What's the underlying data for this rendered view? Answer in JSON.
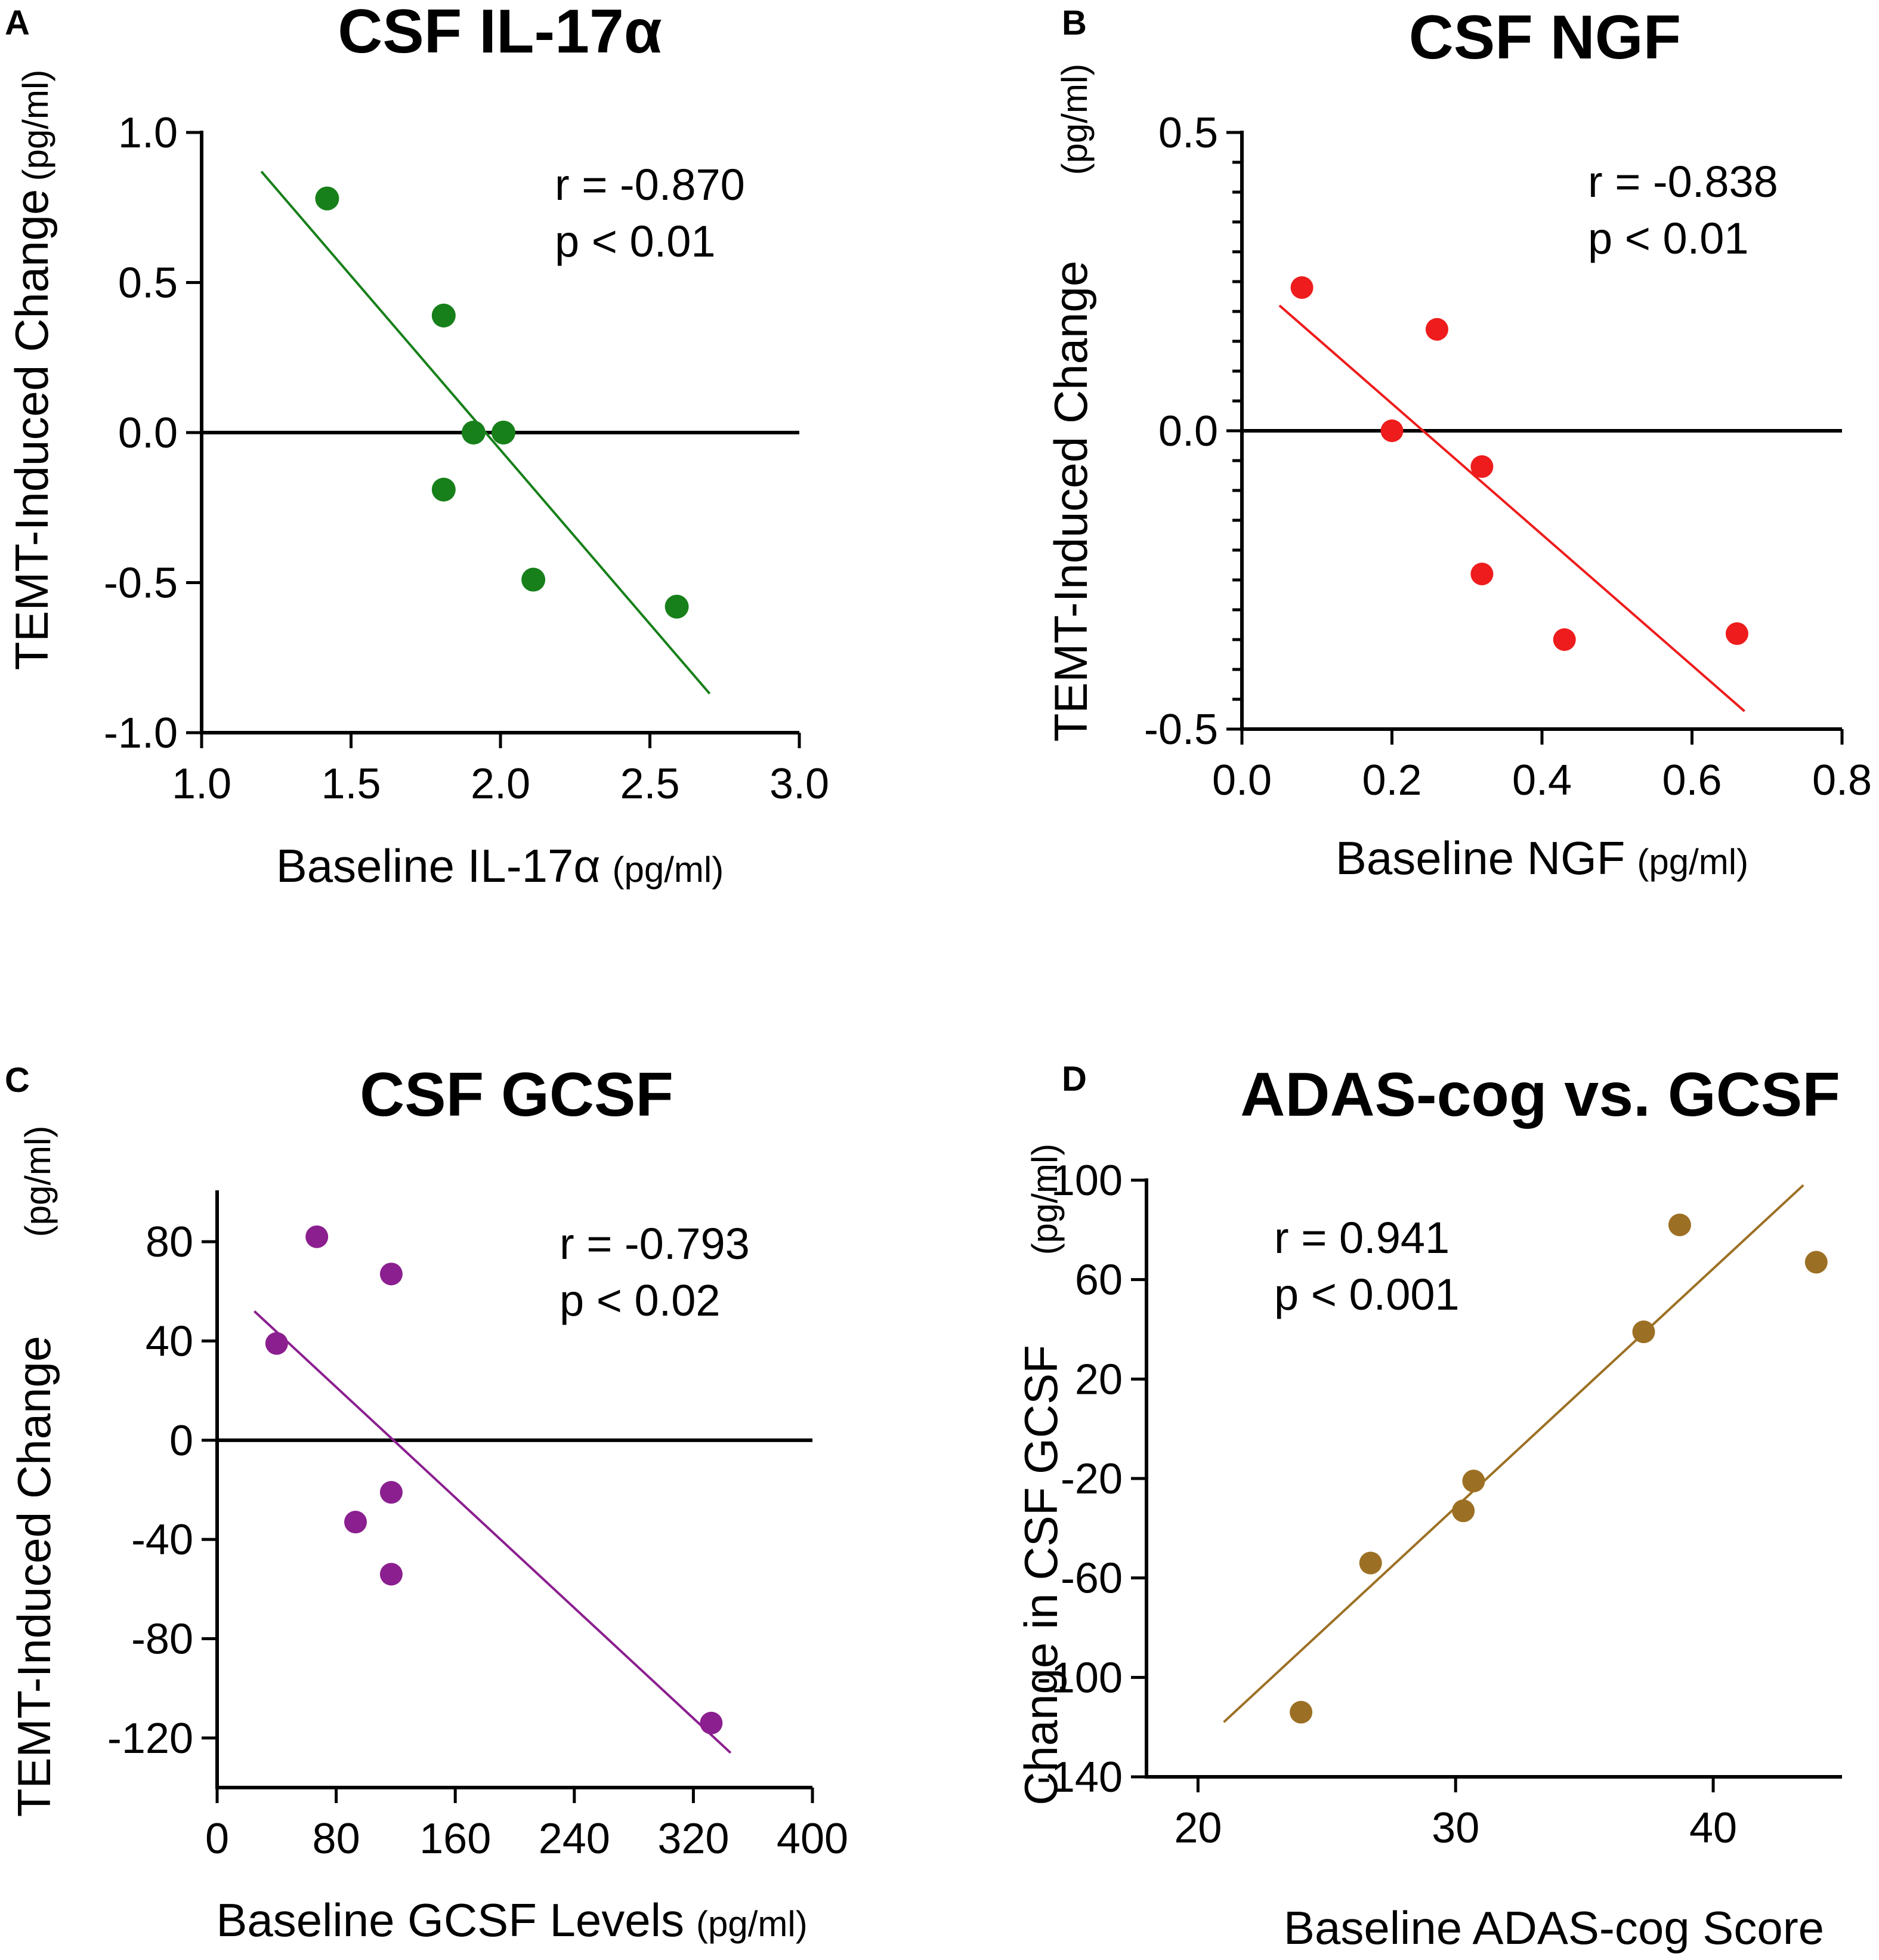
{
  "chart_data": [
    {
      "type": "scatter",
      "panel": "A",
      "title": "CSF IL-17α",
      "xlabel": "Baseline IL-17α",
      "xunit": "(pg/ml)",
      "ylabel": "TEMT-Induced Change",
      "yunit": "(pg/ml)",
      "xlim": [
        1.0,
        3.0
      ],
      "ylim": [
        -1.0,
        1.0
      ],
      "x_ticks": [
        "1.0",
        "1.5",
        "2.0",
        "2.5",
        "3.0"
      ],
      "y_ticks": [
        "1.0",
        "0.5",
        "0.0",
        "-0.5",
        "-1.0"
      ],
      "stats": [
        "r = -0.870",
        "p < 0.01"
      ],
      "color": "#17801a",
      "points": [
        {
          "x": 1.42,
          "y": 0.78
        },
        {
          "x": 1.81,
          "y": 0.39
        },
        {
          "x": 1.81,
          "y": -0.19
        },
        {
          "x": 1.91,
          "y": 0.0
        },
        {
          "x": 2.01,
          "y": 0.0
        },
        {
          "x": 2.11,
          "y": -0.49
        },
        {
          "x": 2.59,
          "y": -0.58
        }
      ],
      "fit_line": {
        "x": [
          1.2,
          2.7
        ],
        "y": [
          0.87,
          -0.87
        ]
      }
    },
    {
      "type": "scatter",
      "panel": "B",
      "title": "CSF NGF",
      "xlabel": "Baseline NGF",
      "xunit": "(pg/ml)",
      "ylabel": "TEMT-Induced Change",
      "yunit": "(pg/ml)",
      "xlim": [
        0.0,
        0.8
      ],
      "ylim": [
        -0.5,
        0.5
      ],
      "x_ticks": [
        "0.0",
        "0.2",
        "0.4",
        "0.6",
        "0.8"
      ],
      "y_ticks": [
        "0.5",
        "0.0",
        "-0.5"
      ],
      "stats": [
        "r = -0.838",
        "p < 0.01"
      ],
      "color": "#ee1c1c",
      "points": [
        {
          "x": 0.08,
          "y": 0.24
        },
        {
          "x": 0.2,
          "y": 0.0
        },
        {
          "x": 0.26,
          "y": 0.17
        },
        {
          "x": 0.32,
          "y": -0.06
        },
        {
          "x": 0.32,
          "y": -0.24
        },
        {
          "x": 0.43,
          "y": -0.35
        },
        {
          "x": 0.66,
          "y": -0.34
        }
      ],
      "fit_line": {
        "x": [
          0.05,
          0.67
        ],
        "y": [
          0.21,
          -0.47
        ]
      }
    },
    {
      "type": "scatter",
      "panel": "C",
      "title": "CSF GCSF",
      "xlabel": "Baseline GCSF Levels",
      "xunit": "(pg/ml)",
      "ylabel": "TEMT-Induced Change",
      "yunit": "(pg/ml)",
      "xlim": [
        0,
        400
      ],
      "ylim": [
        -140,
        100
      ],
      "x_ticks": [
        "0",
        "80",
        "160",
        "240",
        "320",
        "400"
      ],
      "y_ticks": [
        "80",
        "40",
        "0",
        "-40",
        "-80",
        "-120"
      ],
      "stats": [
        "r = -0.793",
        "p < 0.02"
      ],
      "color": "#8b1f8f",
      "points": [
        {
          "x": 40,
          "y": 39
        },
        {
          "x": 67,
          "y": 82
        },
        {
          "x": 93,
          "y": -33
        },
        {
          "x": 117,
          "y": 67
        },
        {
          "x": 117,
          "y": -21
        },
        {
          "x": 117,
          "y": -54
        },
        {
          "x": 332,
          "y": -114
        }
      ],
      "fit_line": {
        "x": [
          25,
          345
        ],
        "y": [
          52,
          -126
        ]
      }
    },
    {
      "type": "scatter",
      "panel": "D",
      "title": "ADAS-cog vs. GCSF",
      "xlabel": "Baseline ADAS-cog Score",
      "ylabel": "Change in CSF GCSF",
      "yunit": "(pg/ml)",
      "xlim": [
        18,
        45
      ],
      "ylim": [
        -140,
        100
      ],
      "x_ticks": [
        "20",
        "30",
        "40"
      ],
      "y_ticks": [
        "100",
        "60",
        "20",
        "-20",
        "-60",
        "-100",
        "-140"
      ],
      "stats": [
        "r = 0.941",
        "p < 0.001"
      ],
      "color": "#9c7024",
      "points": [
        {
          "x": 24,
          "y": -114
        },
        {
          "x": 26.7,
          "y": -54
        },
        {
          "x": 30.3,
          "y": -33
        },
        {
          "x": 30.7,
          "y": -21
        },
        {
          "x": 37.3,
          "y": 39
        },
        {
          "x": 38.7,
          "y": 82
        },
        {
          "x": 44,
          "y": 67
        }
      ],
      "fit_line": {
        "x": [
          21,
          43.5
        ],
        "y": [
          -118,
          98
        ]
      }
    }
  ]
}
